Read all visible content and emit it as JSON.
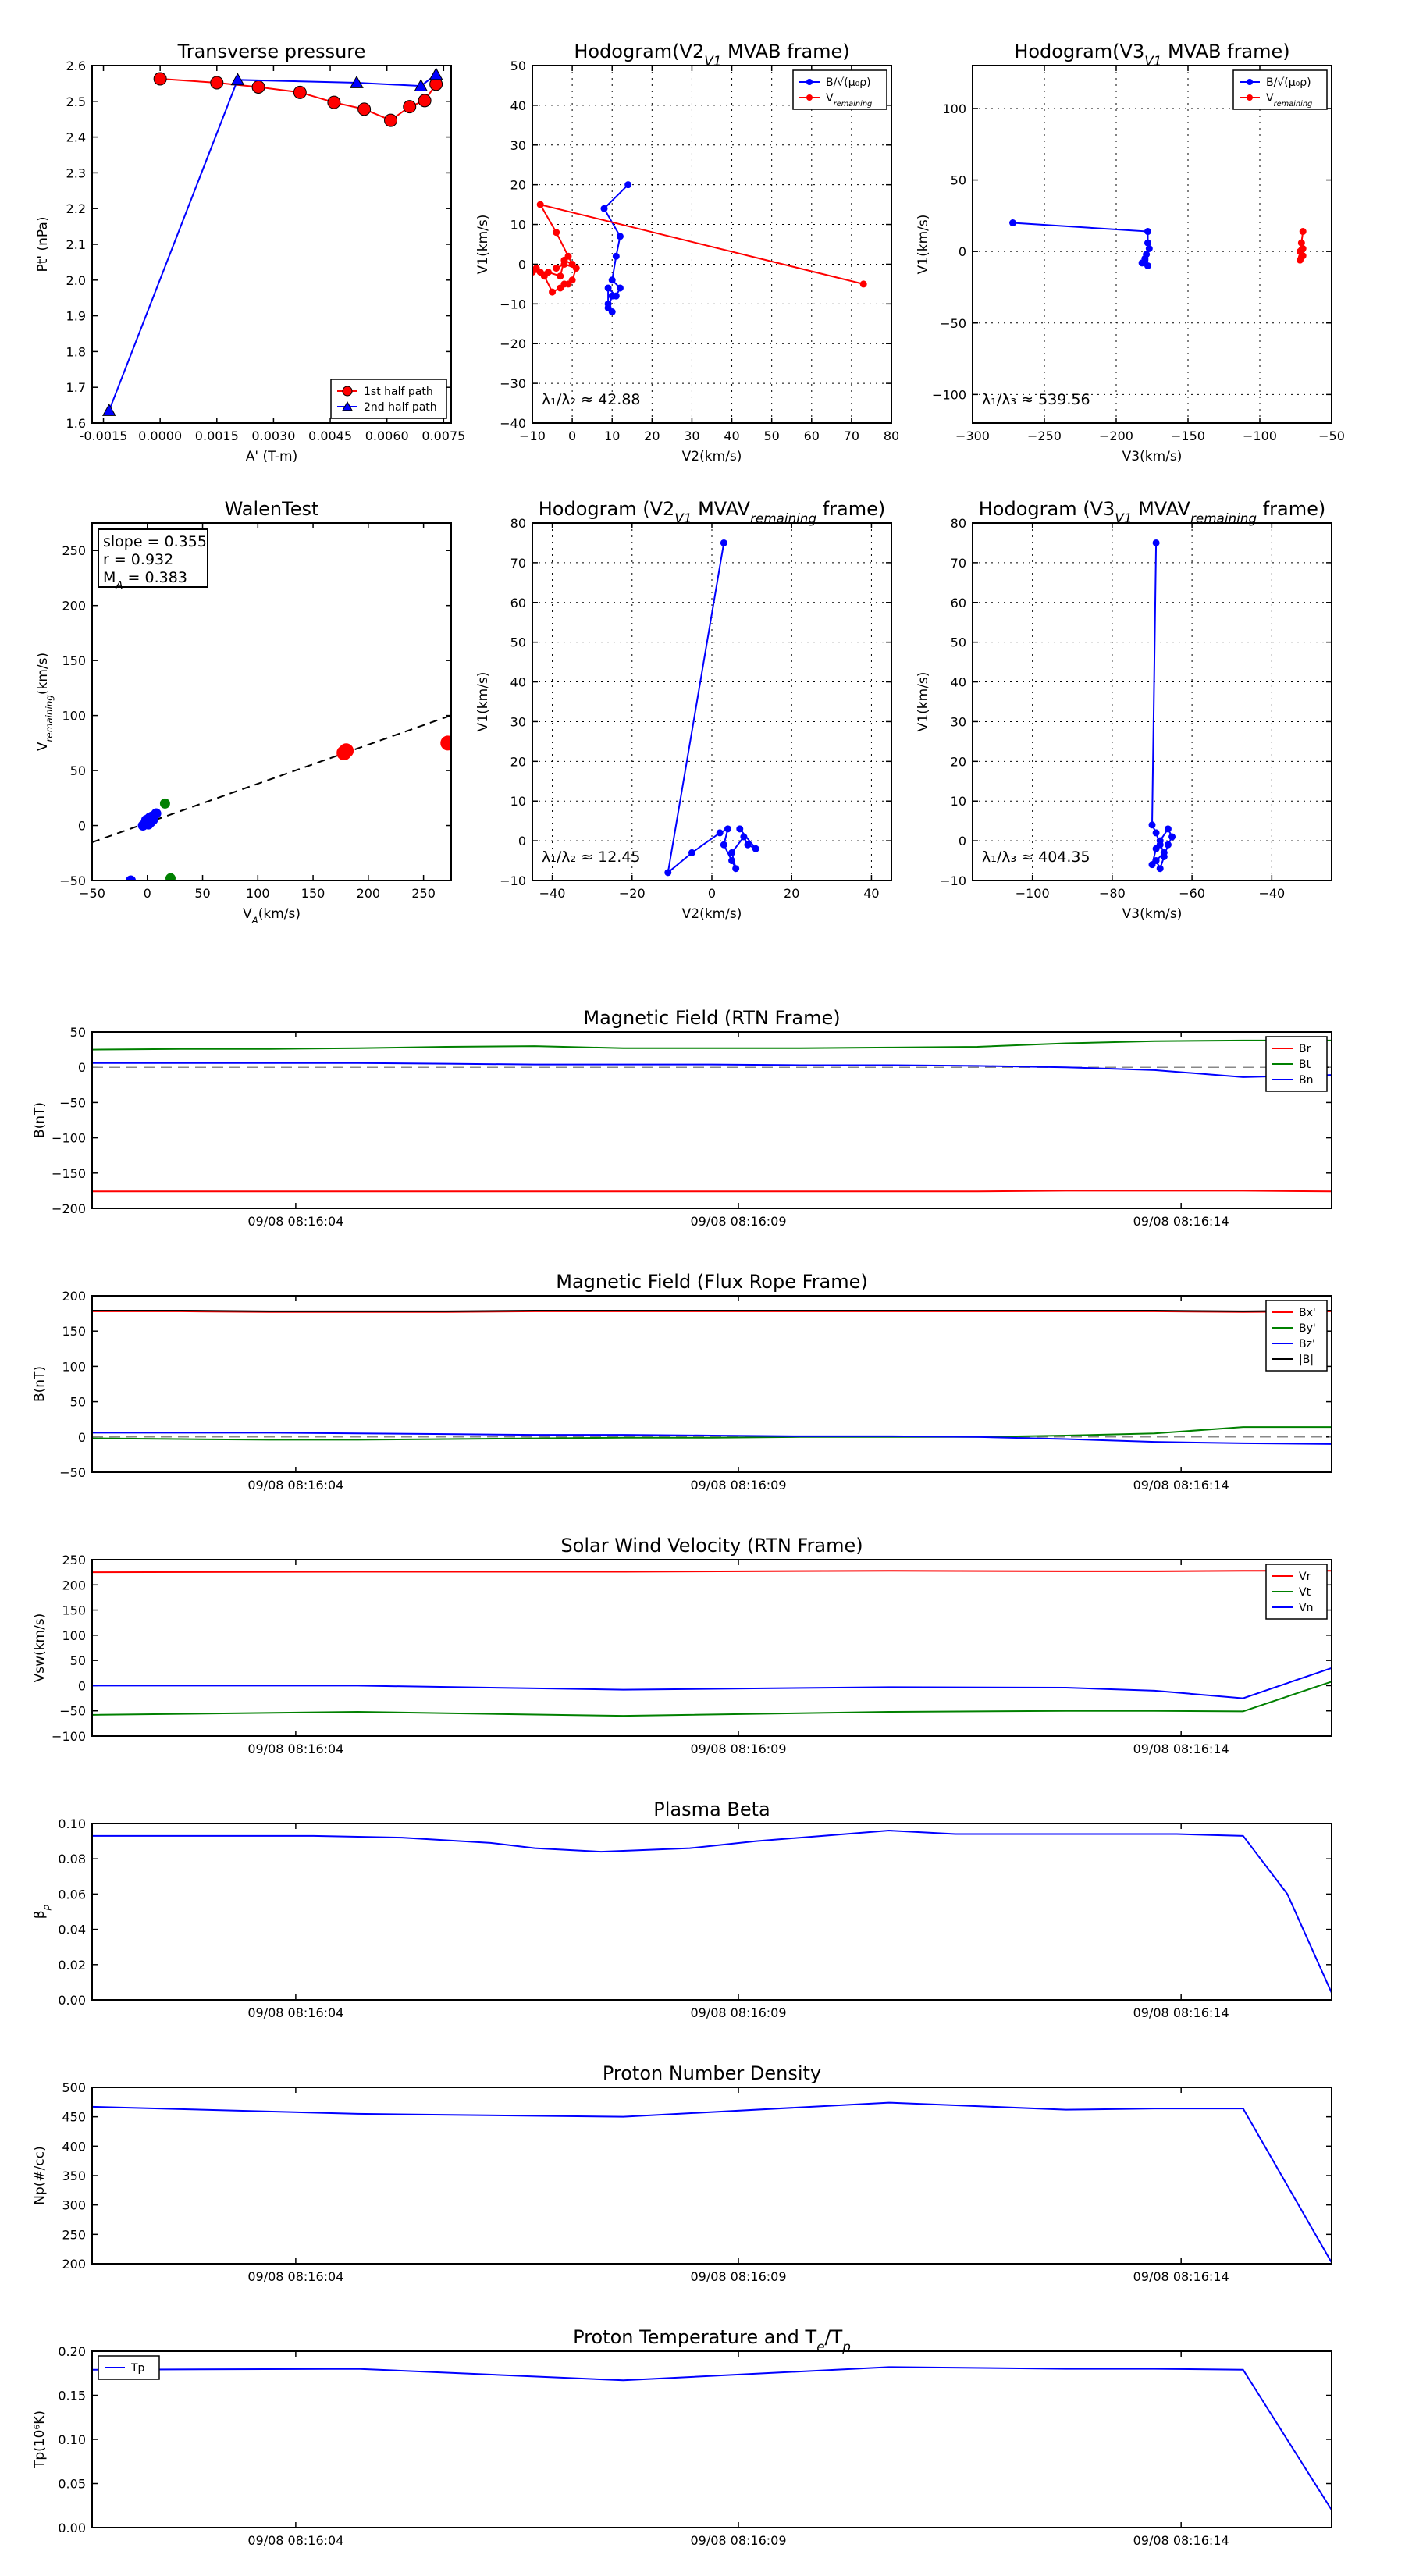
{
  "chart_data": [
    {
      "id": "transverse-pressure",
      "type": "scatter",
      "title": "Transverse pressure",
      "xlabel": "A' (T-m)",
      "ylabel": "Pt' (nPa)",
      "xlim": [
        -0.0018,
        0.0077
      ],
      "ylim": [
        1.6,
        2.6
      ],
      "xticks": [
        -0.0015,
        0.0,
        0.0015,
        0.003,
        0.0045,
        0.006,
        0.0075
      ],
      "xtick_labels": [
        "-0.0015",
        "0.0000",
        "0.0015",
        "0.0030",
        "0.0045",
        "0.0060",
        "0.0075"
      ],
      "yticks": [
        1.6,
        1.7,
        1.8,
        1.9,
        2.0,
        2.1,
        2.2,
        2.3,
        2.4,
        2.5,
        2.6
      ],
      "ytick_labels": [
        "1.6",
        "1.7",
        "1.8",
        "1.9",
        "2.0",
        "2.1",
        "2.2",
        "2.3",
        "2.4",
        "2.5",
        "2.6"
      ],
      "grid": false,
      "legend": "lower-right",
      "series": [
        {
          "name": "1st half path",
          "color": "#ff0000",
          "marker": "circle",
          "x": [
            0.0,
            0.0015,
            0.0026,
            0.0037,
            0.0046,
            0.0054,
            0.0061,
            0.0066,
            0.007,
            0.0073
          ],
          "y": [
            2.563,
            2.552,
            2.54,
            2.525,
            2.497,
            2.478,
            2.447,
            2.485,
            2.502,
            2.548
          ]
        },
        {
          "name": "2nd half path",
          "color": "#0000ff",
          "marker": "triangle",
          "x": [
            -0.00135,
            0.00205,
            0.0052,
            0.0069,
            0.0073
          ],
          "y": [
            1.635,
            2.56,
            2.552,
            2.543,
            2.575
          ]
        }
      ]
    },
    {
      "id": "hodogram-v2-v1-mvab",
      "type": "line",
      "title": "Hodogram(V2_V1 MVAB frame)",
      "xlabel": "V2(km/s)",
      "ylabel": "V1(km/s)",
      "xlim": [
        -10,
        80
      ],
      "ylim": [
        -40,
        50
      ],
      "xticks": [
        -10,
        0,
        10,
        20,
        30,
        40,
        50,
        60,
        70,
        80
      ],
      "xtick_labels": [
        "−10",
        "0",
        "10",
        "20",
        "30",
        "40",
        "50",
        "60",
        "70",
        "80"
      ],
      "yticks": [
        -40,
        -30,
        -20,
        -10,
        0,
        10,
        20,
        30,
        40,
        50
      ],
      "ytick_labels": [
        "−40",
        "−30",
        "−20",
        "−10",
        "0",
        "10",
        "20",
        "30",
        "40",
        "50"
      ],
      "grid": true,
      "legend": "top-right",
      "annotation": "λ₁/λ₂ ≈ 42.88",
      "series": [
        {
          "name": "B/√(μ₀ρ)",
          "color": "#0000ff",
          "x": [
            14,
            8,
            12,
            11,
            10,
            12,
            11,
            9,
            9,
            10,
            9,
            10
          ],
          "y": [
            20,
            14,
            7,
            2,
            -4,
            -6,
            -8,
            -6,
            -10,
            -12,
            -11,
            -8
          ]
        },
        {
          "name": "V_remaining",
          "color": "#ff0000",
          "x": [
            73,
            -8,
            -4,
            -1,
            0,
            -2,
            -3,
            -6,
            -8,
            -10,
            -9,
            -7,
            -5,
            -3,
            -2,
            -1,
            0,
            1,
            -2,
            -4
          ],
          "y": [
            -5,
            15,
            8,
            2,
            0,
            1,
            -3,
            -2,
            -2,
            -2,
            -1,
            -3,
            -7,
            -6,
            -5,
            -5,
            -4,
            -1,
            0,
            -1
          ]
        }
      ]
    },
    {
      "id": "hodogram-v3-v1-mvab",
      "type": "line",
      "title": "Hodogram(V3_V1 MVAB frame)",
      "xlabel": "V3(km/s)",
      "ylabel": "V1(km/s)",
      "xlim": [
        -300,
        -50
      ],
      "ylim": [
        -120,
        130
      ],
      "xticks": [
        -300,
        -250,
        -200,
        -150,
        -100,
        -50
      ],
      "xtick_labels": [
        "−300",
        "−250",
        "−200",
        "−150",
        "−100",
        "−50"
      ],
      "yticks": [
        -100,
        -50,
        0,
        50,
        100
      ],
      "ytick_labels": [
        "−100",
        "−50",
        "0",
        "50",
        "100"
      ],
      "grid": true,
      "legend": "top-right",
      "annotation": "λ₁/λ₃ ≈ 539.56",
      "series": [
        {
          "name": "B/√(μ₀ρ)",
          "color": "#0000ff",
          "x": [
            -272,
            -178,
            -178,
            -177,
            -179,
            -180,
            -178,
            -182,
            -180
          ],
          "y": [
            20,
            14,
            6,
            2,
            -2,
            -6,
            -10,
            -8,
            -5
          ]
        },
        {
          "name": "V_remaining",
          "color": "#ff0000",
          "x": [
            -70,
            -71,
            -70,
            -72,
            -71,
            -72,
            -70,
            -71
          ],
          "y": [
            14,
            6,
            2,
            0,
            -4,
            -6,
            -3,
            1
          ]
        }
      ]
    },
    {
      "id": "walen-test",
      "type": "scatter",
      "title": "WalenTest",
      "xlabel": "V_A(km/s)",
      "ylabel": "V_remaining(km/s)",
      "xlim": [
        -50,
        275
      ],
      "ylim": [
        -50,
        275
      ],
      "xticks": [
        -50,
        0,
        50,
        100,
        150,
        200,
        250
      ],
      "xtick_labels": [
        "−50",
        "0",
        "50",
        "100",
        "150",
        "200",
        "250"
      ],
      "yticks": [
        -50,
        0,
        50,
        100,
        150,
        200,
        250
      ],
      "ytick_labels": [
        "−50",
        "0",
        "50",
        "100",
        "150",
        "200",
        "250"
      ],
      "grid": false,
      "stats": [
        "slope = 0.355",
        "r = 0.932",
        "M_A = 0.383"
      ],
      "fit_line": {
        "slope": 0.355,
        "intercept": 2.5
      },
      "series": [
        {
          "color": "#0000ff",
          "x": [
            -4,
            -2,
            0,
            1,
            2,
            3,
            4,
            5,
            6,
            8,
            -1,
            2,
            -15
          ],
          "y": [
            0,
            2,
            4,
            1,
            6,
            3,
            8,
            5,
            9,
            11,
            5,
            7,
            -50
          ]
        },
        {
          "color": "#008000",
          "x": [
            16,
            21
          ],
          "y": [
            20,
            -48
          ]
        },
        {
          "color": "#ff0000",
          "x": [
            178,
            180,
            272
          ],
          "y": [
            66,
            68,
            75
          ]
        }
      ]
    },
    {
      "id": "hodogram-v2-v1-mvav",
      "type": "line",
      "title": "Hodogram (V2_V1 MVAV_remaining frame)",
      "xlabel": "V2(km/s)",
      "ylabel": "V1(km/s)",
      "xlim": [
        -45,
        45
      ],
      "ylim": [
        -10,
        80
      ],
      "xticks": [
        -40,
        -20,
        0,
        20,
        40
      ],
      "xtick_labels": [
        "−40",
        "−20",
        "0",
        "20",
        "40"
      ],
      "yticks": [
        -10,
        0,
        10,
        20,
        30,
        40,
        50,
        60,
        70,
        80
      ],
      "ytick_labels": [
        "−10",
        "0",
        "10",
        "20",
        "30",
        "40",
        "50",
        "60",
        "70",
        "80"
      ],
      "grid": true,
      "annotation": "λ₁/λ₂ ≈ 12.45",
      "series": [
        {
          "color": "#0000ff",
          "x": [
            3,
            -11,
            -5,
            2,
            4,
            3,
            5,
            6,
            5,
            8,
            9,
            11,
            7
          ],
          "y": [
            75,
            -8,
            -3,
            2,
            3,
            -1,
            -5,
            -7,
            -3,
            1,
            -1,
            -2,
            3
          ]
        }
      ]
    },
    {
      "id": "hodogram-v3-v1-mvav",
      "type": "line",
      "title": "Hodogram (V3_V1 MVAV_remaining frame)",
      "xlabel": "V3(km/s)",
      "ylabel": "V1(km/s)",
      "xlim": [
        -115,
        -25
      ],
      "ylim": [
        -10,
        80
      ],
      "xticks": [
        -100,
        -80,
        -60,
        -40
      ],
      "xtick_labels": [
        "−100",
        "−80",
        "−60",
        "−40"
      ],
      "yticks": [
        -10,
        0,
        10,
        20,
        30,
        40,
        50,
        60,
        70,
        80
      ],
      "ytick_labels": [
        "−10",
        "0",
        "10",
        "20",
        "30",
        "40",
        "50",
        "60",
        "70",
        "80"
      ],
      "grid": true,
      "annotation": "λ₁/λ₃ ≈ 404.35",
      "series": [
        {
          "color": "#0000ff",
          "x": [
            -69,
            -70,
            -69,
            -68,
            -67,
            -69,
            -68,
            -67,
            -66,
            -65,
            -66,
            -68,
            -69,
            -70
          ],
          "y": [
            75,
            4,
            2,
            -1,
            -3,
            -5,
            -7,
            -4,
            -1,
            1,
            3,
            0,
            -2,
            -6
          ]
        }
      ]
    },
    {
      "id": "magnetic-field-rtn",
      "type": "line",
      "title": "Magnetic Field (RTN Frame)",
      "ylabel": "B(nT)",
      "x": [
        0,
        2,
        4,
        6,
        8,
        10,
        12,
        14,
        16,
        18,
        20,
        22,
        24,
        26,
        28
      ],
      "xlim": [
        0,
        28
      ],
      "ylim": [
        -200,
        50
      ],
      "xticks": [
        4.6,
        14.6,
        24.6
      ],
      "xtick_labels": [
        "09/08 08:16:04",
        "09/08 08:16:09",
        "09/08 08:16:14"
      ],
      "yticks": [
        -200,
        -150,
        -100,
        -50,
        0,
        50
      ],
      "ytick_labels": [
        "−200",
        "−150",
        "−100",
        "−50",
        "0",
        "50"
      ],
      "zero_line": true,
      "legend": "top-right",
      "series": [
        {
          "name": "Br",
          "color": "#ff0000",
          "values": [
            -176,
            -176,
            -176,
            -176,
            -176,
            -176,
            -176,
            -176,
            -176,
            -176,
            -176,
            -175,
            -175,
            -175,
            -176
          ]
        },
        {
          "name": "Bt",
          "color": "#008000",
          "values": [
            25,
            26,
            26,
            27,
            29,
            30,
            27,
            27,
            27,
            28,
            29,
            34,
            37,
            38,
            38
          ]
        },
        {
          "name": "Bn",
          "color": "#0000ff",
          "values": [
            6,
            6,
            6,
            6,
            5,
            4,
            4,
            4,
            3,
            3,
            2,
            0,
            -4,
            -14,
            -11
          ]
        }
      ]
    },
    {
      "id": "magnetic-field-flux-rope",
      "type": "line",
      "title": "Magnetic Field (Flux Rope Frame)",
      "ylabel": "B(nT)",
      "x": [
        0,
        2,
        4,
        6,
        8,
        10,
        12,
        14,
        16,
        18,
        20,
        22,
        24,
        26,
        28
      ],
      "xlim": [
        0,
        28
      ],
      "ylim": [
        -50,
        200
      ],
      "xticks": [
        4.6,
        14.6,
        24.6
      ],
      "xtick_labels": [
        "09/08 08:16:04",
        "09/08 08:16:09",
        "09/08 08:16:14"
      ],
      "yticks": [
        -50,
        0,
        50,
        100,
        150,
        200
      ],
      "ytick_labels": [
        "−50",
        "0",
        "50",
        "100",
        "150",
        "200"
      ],
      "zero_line": true,
      "legend": "top-right",
      "series": [
        {
          "name": "Bx'",
          "color": "#ff0000",
          "values": [
            178,
            178,
            177,
            177,
            177,
            178,
            178,
            178,
            178,
            178,
            178,
            178,
            178,
            177,
            178
          ]
        },
        {
          "name": "By'",
          "color": "#008000",
          "values": [
            -2,
            -3,
            -4,
            -4,
            -3,
            -2,
            -1,
            -1,
            0,
            0,
            0,
            2,
            5,
            14,
            14
          ]
        },
        {
          "name": "Bz'",
          "color": "#0000ff",
          "values": [
            6,
            6,
            6,
            5,
            4,
            3,
            3,
            2,
            1,
            1,
            0,
            -3,
            -7,
            -9,
            -10
          ]
        },
        {
          "name": "|B|",
          "color": "#000000",
          "values": [
            179,
            179,
            178,
            178,
            178,
            179,
            179,
            179,
            179,
            179,
            179,
            179,
            179,
            178,
            179
          ]
        }
      ]
    },
    {
      "id": "solar-wind-velocity-rtn",
      "type": "line",
      "title": "Solar Wind Velocity (RTN Frame)",
      "ylabel": "Vsw(km/s)",
      "x": [
        0,
        6,
        12,
        18,
        22,
        24,
        26,
        28
      ],
      "xlim": [
        0,
        28
      ],
      "ylim": [
        -100,
        250
      ],
      "xticks": [
        4.6,
        14.6,
        24.6
      ],
      "xtick_labels": [
        "09/08 08:16:04",
        "09/08 08:16:09",
        "09/08 08:16:14"
      ],
      "yticks": [
        -100,
        -50,
        0,
        50,
        100,
        150,
        200,
        250
      ],
      "ytick_labels": [
        "−100",
        "−50",
        "0",
        "50",
        "100",
        "150",
        "200",
        "250"
      ],
      "legend": "top-right",
      "series": [
        {
          "name": "Vr",
          "color": "#ff0000",
          "values": [
            225,
            226,
            226,
            228,
            227,
            227,
            228,
            228
          ]
        },
        {
          "name": "Vt",
          "color": "#008000",
          "values": [
            -58,
            -52,
            -60,
            -52,
            -50,
            -50,
            -51,
            8
          ]
        },
        {
          "name": "Vn",
          "color": "#0000ff",
          "values": [
            0,
            0,
            -8,
            -3,
            -4,
            -10,
            -25,
            35
          ]
        }
      ]
    },
    {
      "id": "plasma-beta",
      "type": "line",
      "title": "Plasma Beta",
      "ylabel": "β_p",
      "x": [
        0,
        3,
        5,
        7,
        9,
        10,
        11.5,
        13.5,
        15,
        16.5,
        18,
        19.5,
        21.5,
        23,
        24.5,
        26,
        27,
        28
      ],
      "xlim": [
        0,
        28
      ],
      "ylim": [
        0.0,
        0.1
      ],
      "xticks": [
        4.6,
        14.6,
        24.6
      ],
      "xtick_labels": [
        "09/08 08:16:04",
        "09/08 08:16:09",
        "09/08 08:16:14"
      ],
      "yticks": [
        0.0,
        0.02,
        0.04,
        0.06,
        0.08,
        0.1
      ],
      "ytick_labels": [
        "0.00",
        "0.02",
        "0.04",
        "0.06",
        "0.08",
        "0.10"
      ],
      "series": [
        {
          "color": "#0000ff",
          "values": [
            0.093,
            0.093,
            0.093,
            0.092,
            0.089,
            0.086,
            0.084,
            0.086,
            0.09,
            0.093,
            0.096,
            0.094,
            0.094,
            0.094,
            0.094,
            0.093,
            0.06,
            0.004
          ]
        }
      ]
    },
    {
      "id": "proton-number-density",
      "type": "line",
      "title": "Proton Number Density",
      "ylabel": "Np(#/cc)",
      "x": [
        0,
        6,
        12,
        18,
        22,
        24,
        26,
        28
      ],
      "xlim": [
        0,
        28
      ],
      "ylim": [
        200,
        500
      ],
      "xticks": [
        4.6,
        14.6,
        24.6
      ],
      "xtick_labels": [
        "09/08 08:16:04",
        "09/08 08:16:09",
        "09/08 08:16:14"
      ],
      "yticks": [
        200,
        250,
        300,
        350,
        400,
        450,
        500
      ],
      "ytick_labels": [
        "200",
        "250",
        "300",
        "350",
        "400",
        "450",
        "500"
      ],
      "series": [
        {
          "color": "#0000ff",
          "values": [
            467,
            455,
            450,
            474,
            462,
            464,
            464,
            202
          ]
        }
      ]
    },
    {
      "id": "proton-temperature",
      "type": "line",
      "title": "Proton Temperature and T_e/T_p",
      "ylabel": "Tp(10⁶K)",
      "x": [
        0,
        6,
        12,
        18,
        22,
        24,
        26,
        28
      ],
      "xlim": [
        0,
        28
      ],
      "ylim": [
        0.0,
        0.2
      ],
      "xticks": [
        4.6,
        14.6,
        24.6
      ],
      "xtick_labels": [
        "09/08 08:16:04",
        "09/08 08:16:09",
        "09/08 08:16:14"
      ],
      "yticks": [
        0.0,
        0.05,
        0.1,
        0.15,
        0.2
      ],
      "ytick_labels": [
        "0.00",
        "0.05",
        "0.10",
        "0.15",
        "0.20"
      ],
      "legend": "top-left",
      "series": [
        {
          "name": "Tp",
          "color": "#0000ff",
          "values": [
            0.179,
            0.18,
            0.167,
            0.182,
            0.18,
            0.18,
            0.179,
            0.02
          ]
        }
      ]
    }
  ]
}
